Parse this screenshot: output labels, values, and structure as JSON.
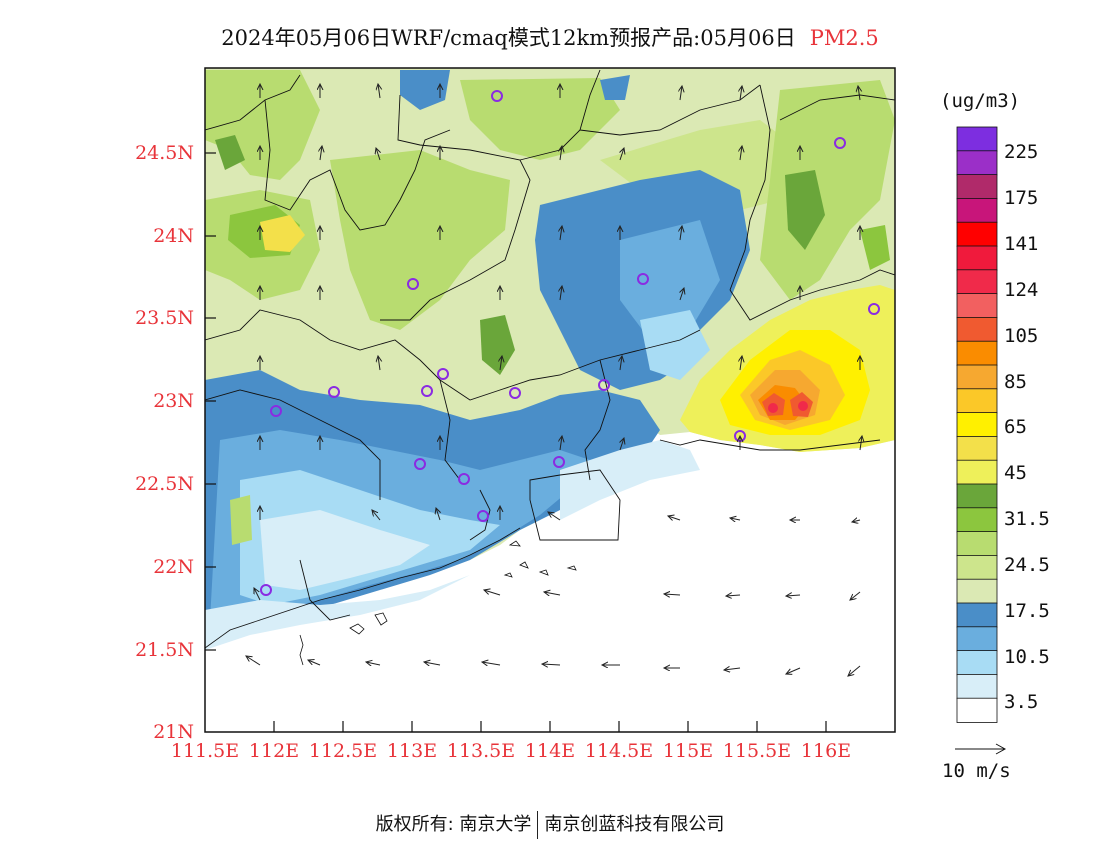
{
  "header": {
    "title": "2024年05月06日WRF/cmaq模式12km预报产品:05月06日",
    "pollutant": "PM2.5"
  },
  "axes": {
    "y_ticks": [
      "24.5N",
      "24N",
      "23.5N",
      "23N",
      "22.5N",
      "22N",
      "21.5N",
      "21N"
    ],
    "x_ticks": [
      "111.5E",
      "112E",
      "112.5E",
      "113E",
      "113.5E",
      "114E",
      "114.5E",
      "115E",
      "115.5E",
      "116E"
    ],
    "tick_color": "#e8343a"
  },
  "colorbar": {
    "unit": "(ug/m3)",
    "labels": [
      "225",
      "175",
      "141",
      "124",
      "105",
      "85",
      "65",
      "45",
      "31.5",
      "24.5",
      "17.5",
      "10.5",
      "3.5"
    ],
    "colors": [
      "#7d2ee0",
      "#9b2fc8",
      "#b02a6a",
      "#c8157a",
      "#ff0000",
      "#f01a3c",
      "#f02a4a",
      "#f26060",
      "#f05a30",
      "#fa8c00",
      "#f6a830",
      "#fbc828",
      "#fff000",
      "#f3e04a",
      "#eef05a",
      "#6aa63a",
      "#8cc63e",
      "#b8dc70",
      "#cde58c",
      "#dbe9b4",
      "#4a8ec8",
      "#6aaede",
      "#a8dcf4",
      "#d8eef8",
      "#ffffff"
    ]
  },
  "wind": {
    "reference_label": "10 m/s"
  },
  "footer": {
    "copyright_left": "版权所有: 南京大学",
    "copyright_right": "南京创蓝科技有限公司"
  }
}
